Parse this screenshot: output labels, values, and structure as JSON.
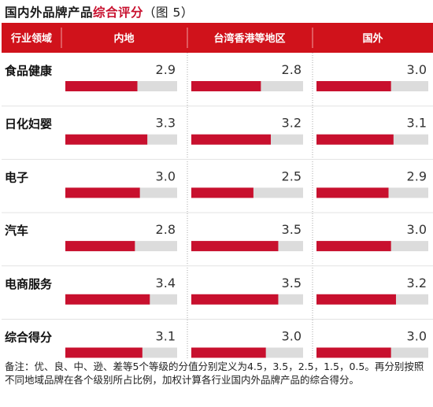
{
  "title": {
    "part1": "国内外品牌产品",
    "part2": "综合评分",
    "part3": "（图 5）"
  },
  "chart_data": {
    "type": "bar",
    "row_header": "行业领域",
    "columns": [
      "内地",
      "台湾香港等地区",
      "国外"
    ],
    "categories": [
      "食品健康",
      "日化妇婴",
      "电子",
      "汽车",
      "电商服务",
      "综合得分"
    ],
    "series": [
      {
        "name": "内地",
        "values": [
          2.9,
          3.3,
          3.0,
          2.8,
          3.4,
          3.1
        ]
      },
      {
        "name": "台湾香港等地区",
        "values": [
          2.8,
          3.2,
          2.5,
          3.5,
          3.5,
          3.0
        ]
      },
      {
        "name": "国外",
        "values": [
          3.0,
          3.1,
          2.9,
          3.0,
          3.2,
          3.0
        ]
      }
    ],
    "value_labels": [
      [
        "2.9",
        "3.3",
        "3.0",
        "2.8",
        "3.4",
        "3.1"
      ],
      [
        "2.8",
        "3.2",
        "2.5",
        "3.5",
        "3.5",
        "3.0"
      ],
      [
        "3.0",
        "3.1",
        "2.9",
        "3.0",
        "3.2",
        "3.0"
      ]
    ],
    "xlim": [
      0,
      4.5
    ],
    "colors": {
      "header": "#d0121b",
      "bar": "#c8102e",
      "track": "#dcdcdc",
      "divider": "#aaaaaa",
      "row_line": "#e2e2e2"
    }
  },
  "note": "备注：优、良、中、逊、差等5个等级的分值分别定义为4.5，3.5，2.5，1.5，0.5。再分别按照不同地域品牌在各个级别所占比例，加权计算各行业国内外品牌产品的综合得分。"
}
